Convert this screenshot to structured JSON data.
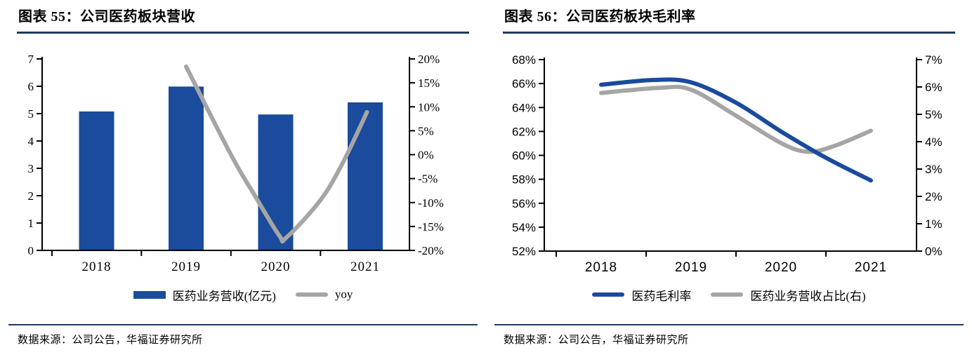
{
  "colors": {
    "bar_blue": "#1A4B9C",
    "line_gray": "#A5A5A5",
    "rule_navy": "#1F3A61",
    "axis_black": "#000000"
  },
  "panels": [
    {
      "title": "图表 55：公司医药板块营收",
      "legend": [
        {
          "label": "医药业务营收(亿元)",
          "swatch": "bar",
          "color": "#1A4B9C"
        },
        {
          "label": "yoy",
          "swatch": "line",
          "color": "#A5A5A5"
        }
      ],
      "source": "数据来源：公司公告，华福证券研究所"
    },
    {
      "title": "图表 56：公司医药板块毛利率",
      "legend": [
        {
          "label": "医药毛利率",
          "swatch": "line",
          "color": "#1A4B9C"
        },
        {
          "label": "医药业务营收占比(右)",
          "swatch": "line",
          "color": "#A5A5A5"
        }
      ],
      "source": "数据来源：公司公告，华福证券研究所"
    }
  ],
  "chart_data": [
    {
      "type": "bar",
      "title": "图表 55：公司医药板块营收",
      "categories": [
        "2018",
        "2019",
        "2020",
        "2021"
      ],
      "series": [
        {
          "name": "医药业务营收(亿元)",
          "type": "bar",
          "axis": "left",
          "unit": "亿元",
          "color": "#1A4B9C",
          "values": [
            5.08,
            5.99,
            4.97,
            5.41
          ]
        },
        {
          "name": "yoy",
          "type": "line",
          "axis": "right",
          "unit": "%",
          "color": "#A5A5A5",
          "values": [
            null,
            18.0,
            -17.0,
            9.0
          ],
          "curve_points": [
            [
              1,
              18.4
            ],
            [
              1.5,
              0
            ],
            [
              1.75,
              -8
            ],
            [
              2.04,
              -16.9
            ],
            [
              2.12,
              -17.3
            ],
            [
              2.5,
              -9.5
            ],
            [
              2.75,
              -1.7
            ],
            [
              3.02,
              8.9
            ]
          ]
        }
      ],
      "left_axis": {
        "min": 0,
        "max": 7,
        "step": 1,
        "ticks": [
          "7",
          "6",
          "5",
          "4",
          "3",
          "2",
          "1",
          "0"
        ]
      },
      "right_axis": {
        "min": -20,
        "max": 20,
        "step": 5,
        "ticks": [
          "20%",
          "15%",
          "10%",
          "5%",
          "0%",
          "-5%",
          "-10%",
          "-15%",
          "-20%"
        ]
      },
      "grid": false,
      "legend_position": "bottom"
    },
    {
      "type": "line",
      "title": "图表 56：公司医药板块毛利率",
      "categories": [
        "2018",
        "2019",
        "2020",
        "2021"
      ],
      "series": [
        {
          "name": "医药毛利率",
          "type": "line",
          "axis": "left",
          "unit": "%",
          "color": "#1A4B9C",
          "values": [
            65.9,
            66.1,
            62.0,
            57.9
          ],
          "curve_points": [
            [
              0,
              65.9
            ],
            [
              0.58,
              66.3
            ],
            [
              1,
              66.1
            ],
            [
              1.5,
              64.4
            ],
            [
              2,
              62.0
            ],
            [
              2.5,
              59.8
            ],
            [
              3,
              57.9
            ]
          ]
        },
        {
          "name": "医药业务营收占比(右)",
          "type": "line",
          "axis": "right",
          "unit": "%",
          "color": "#A5A5A5",
          "values": [
            5.8,
            5.9,
            3.9,
            4.4
          ],
          "curve_points": [
            [
              0,
              5.78
            ],
            [
              0.65,
              5.97
            ],
            [
              1,
              5.9
            ],
            [
              1.5,
              4.95
            ],
            [
              2,
              3.95
            ],
            [
              2.3,
              3.63
            ],
            [
              2.6,
              3.85
            ],
            [
              3,
              4.4
            ]
          ]
        }
      ],
      "left_axis": {
        "min": 52,
        "max": 68,
        "step": 2,
        "ticks": [
          "68%",
          "66%",
          "64%",
          "62%",
          "60%",
          "58%",
          "56%",
          "54%",
          "52%"
        ]
      },
      "right_axis": {
        "min": 0,
        "max": 7,
        "step": 1,
        "ticks": [
          "7%",
          "6%",
          "5%",
          "4%",
          "3%",
          "2%",
          "1%",
          "0%"
        ]
      },
      "grid": false,
      "legend_position": "bottom"
    }
  ]
}
